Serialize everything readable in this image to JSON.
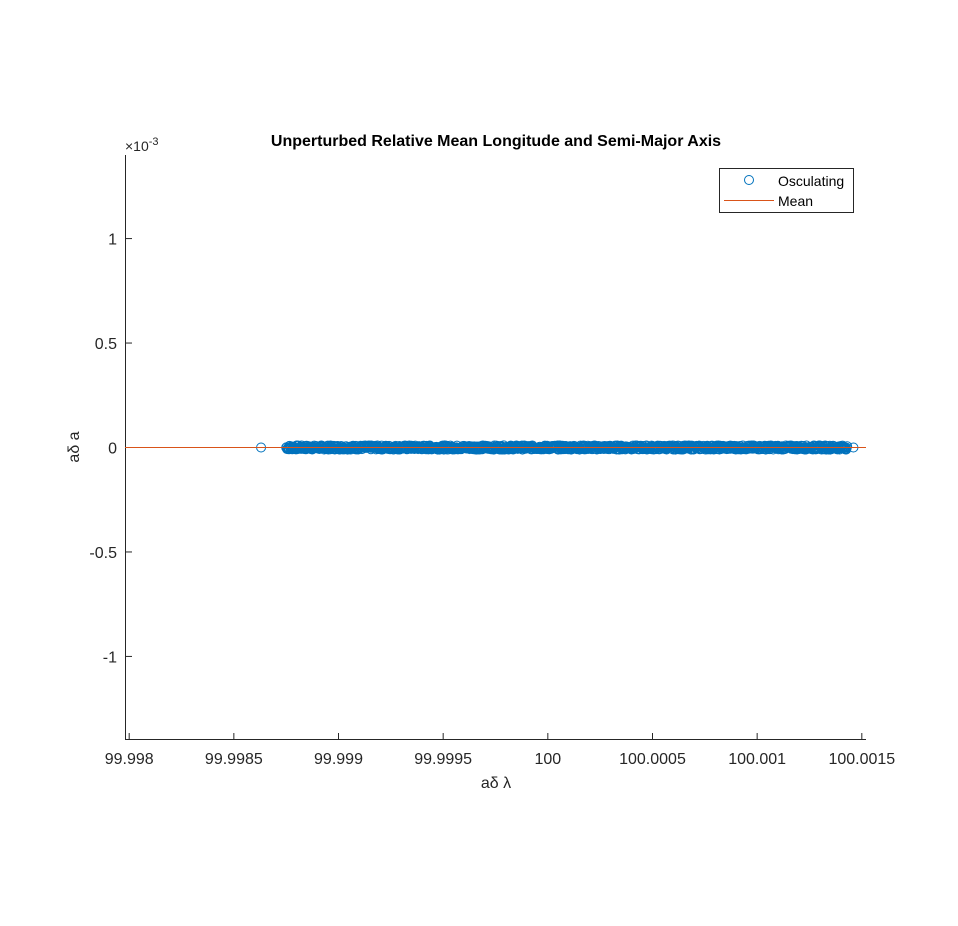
{
  "chart_data": {
    "type": "scatter",
    "title": "Unperturbed Relative Mean Longitude and Semi-Major Axis",
    "xlabel": "aδ λ",
    "ylabel": "aδ a",
    "y_exponent_label": "×10",
    "y_exponent_power": "-3",
    "xlim": [
      99.99798,
      100.00152
    ],
    "ylim": [
      -0.0014,
      0.0014
    ],
    "x_ticks": [
      99.998,
      99.9985,
      99.999,
      99.9995,
      100,
      100.0005,
      100.001,
      100.0015
    ],
    "x_tick_labels": [
      "99.998",
      "99.9985",
      "99.999",
      "99.9995",
      "100",
      "100.0005",
      "100.001",
      "100.0015"
    ],
    "y_ticks": [
      -0.001,
      -0.0005,
      0,
      0.0005,
      0.001
    ],
    "y_tick_labels": [
      "-1",
      "-0.5",
      "0",
      "0.5",
      "1"
    ],
    "grid": false,
    "legend_position": "top-right",
    "series": [
      {
        "name": "Osculating",
        "marker": "circle-open",
        "color": "#0072BD",
        "points": [
          {
            "x": 99.99863,
            "y": 0
          },
          {
            "x": 100.00146,
            "y": 0
          }
        ],
        "dense_band": {
          "x_start": 99.99875,
          "x_end": 100.00143,
          "y_center": 0,
          "y_spread": 1e-05,
          "count": 1200
        }
      },
      {
        "name": "Mean",
        "style": "line",
        "color": "#D95319",
        "x": [
          99.99798,
          100.00152
        ],
        "y": [
          0,
          0
        ]
      }
    ]
  }
}
